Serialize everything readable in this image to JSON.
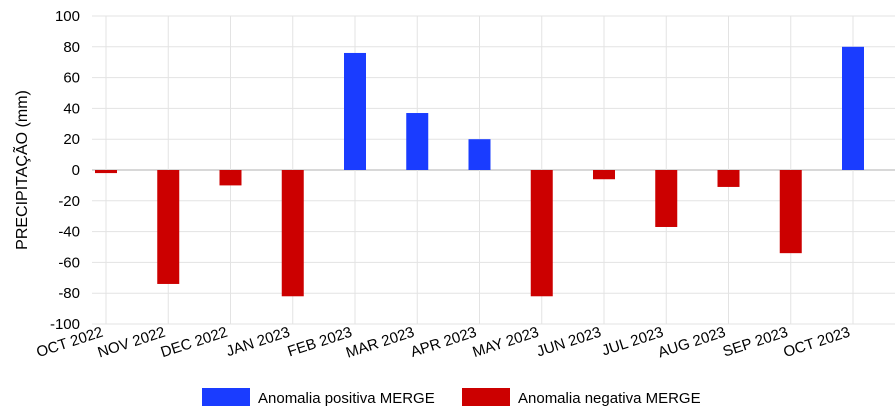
{
  "chart_data": {
    "type": "bar",
    "title": "",
    "xlabel": "",
    "ylabel": "PRECIPITAÇÃO (mm)",
    "ylim": [
      -100,
      100
    ],
    "yticks": [
      100,
      80,
      60,
      40,
      20,
      0,
      -20,
      -40,
      -60,
      -80,
      -100
    ],
    "grid": true,
    "legend_position": "bottom",
    "categories": [
      "OCT 2022",
      "NOV 2022",
      "DEC 2022",
      "JAN 2023",
      "FEB 2023",
      "MAR 2023",
      "APR 2023",
      "MAY 2023",
      "JUN 2023",
      "JUL 2023",
      "AUG 2023",
      "SEP 2023",
      "OCT 2023"
    ],
    "values": [
      -2,
      -74,
      -10,
      -82,
      76,
      37,
      20,
      -82,
      -6,
      -37,
      -11,
      -54,
      80
    ],
    "series": [
      {
        "name": "Anomalia positiva MERGE",
        "color": "#1a3cff"
      },
      {
        "name": "Anomalia negativa MERGE",
        "color": "#cc0000"
      }
    ]
  }
}
